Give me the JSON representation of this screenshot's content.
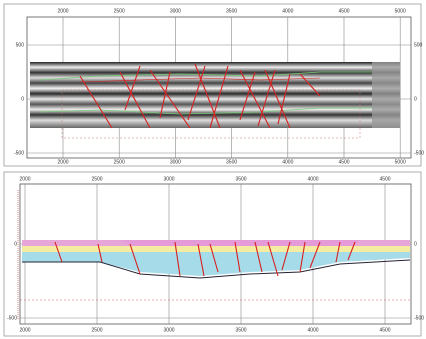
{
  "top_panel": {
    "x_ticks": [
      "2000",
      "2500",
      "3000",
      "3500",
      "4000",
      "4500",
      "5000"
    ],
    "y_ticks": [
      "500",
      "0",
      "-500"
    ]
  },
  "bottom_panel": {
    "x_ticks": [
      "2000",
      "2500",
      "3000",
      "3500",
      "4000",
      "4500"
    ],
    "y_ticks": [
      "0",
      "-500"
    ]
  }
}
